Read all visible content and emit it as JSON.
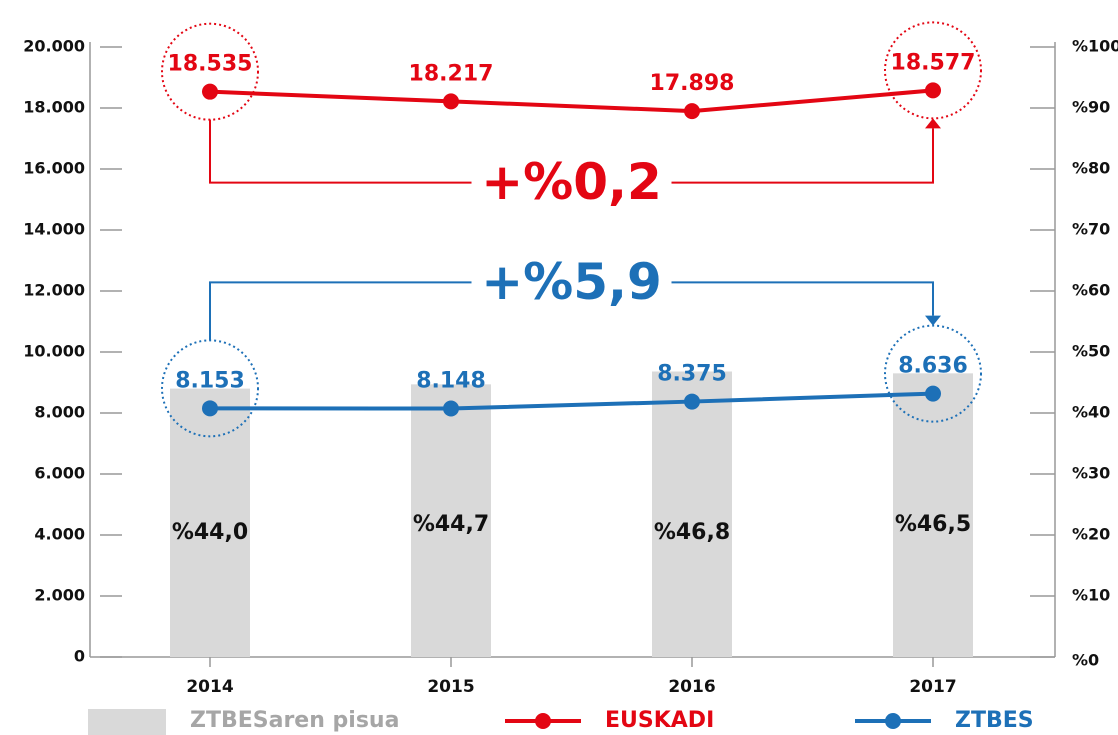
{
  "chart_data": {
    "type": "combo",
    "categories": [
      "2014",
      "2015",
      "2016",
      "2017"
    ],
    "series": [
      {
        "name": "ZTBESaren pisua",
        "type": "bar",
        "axis": "y2",
        "color": "#d9d9d9",
        "values": [
          44.0,
          44.7,
          46.8,
          46.5
        ],
        "value_labels": [
          "%44,0",
          "%44,7",
          "%46,8",
          "%46,5"
        ]
      },
      {
        "name": "EUSKADI",
        "type": "line",
        "color": "#e30613",
        "values": [
          18535,
          18217,
          17898,
          18577
        ],
        "value_labels": [
          "18.535",
          "18.217",
          "17.898",
          "18.577"
        ]
      },
      {
        "name": "ZTBES",
        "type": "line",
        "color": "#1d70b7",
        "values": [
          8153,
          8148,
          8375,
          8636
        ],
        "value_labels": [
          "8.153",
          "8.148",
          "8.375",
          "8.636"
        ]
      }
    ],
    "ylim": [
      0,
      20000
    ],
    "yticks": [
      0,
      {
        "value": 2000,
        "label": "2.000"
      },
      {
        "value": 4000,
        "label": "4.000"
      },
      {
        "value": 6000,
        "label": "6.000"
      },
      {
        "value": 8000,
        "label": "8.000"
      },
      {
        "value": 10000,
        "label": "10.000"
      },
      {
        "value": 12000,
        "label": "12.000"
      },
      {
        "value": 14000,
        "label": "14.000"
      },
      {
        "value": 16000,
        "label": "16.000"
      },
      {
        "value": 18000,
        "label": "18.000"
      },
      {
        "value": 20000,
        "label": "20.000"
      }
    ],
    "y2lim": [
      0,
      100
    ],
    "y2ticks": [
      {
        "value": 0,
        "label": "%0"
      },
      {
        "value": 10,
        "label": "%10"
      },
      {
        "value": 20,
        "label": "%20"
      },
      {
        "value": 30,
        "label": "%30"
      },
      {
        "value": 40,
        "label": "%40"
      },
      {
        "value": 50,
        "label": "%50"
      },
      {
        "value": 60,
        "label": "%60"
      },
      {
        "value": 70,
        "label": "%70"
      },
      {
        "value": 80,
        "label": "%80"
      },
      {
        "value": 90,
        "label": "%90"
      },
      {
        "value": 100,
        "label": "%100"
      }
    ],
    "annotations": [
      {
        "text": "+%0,2",
        "color": "#e30613"
      },
      {
        "text": "+%5,9",
        "color": "#1d70b7"
      }
    ]
  }
}
